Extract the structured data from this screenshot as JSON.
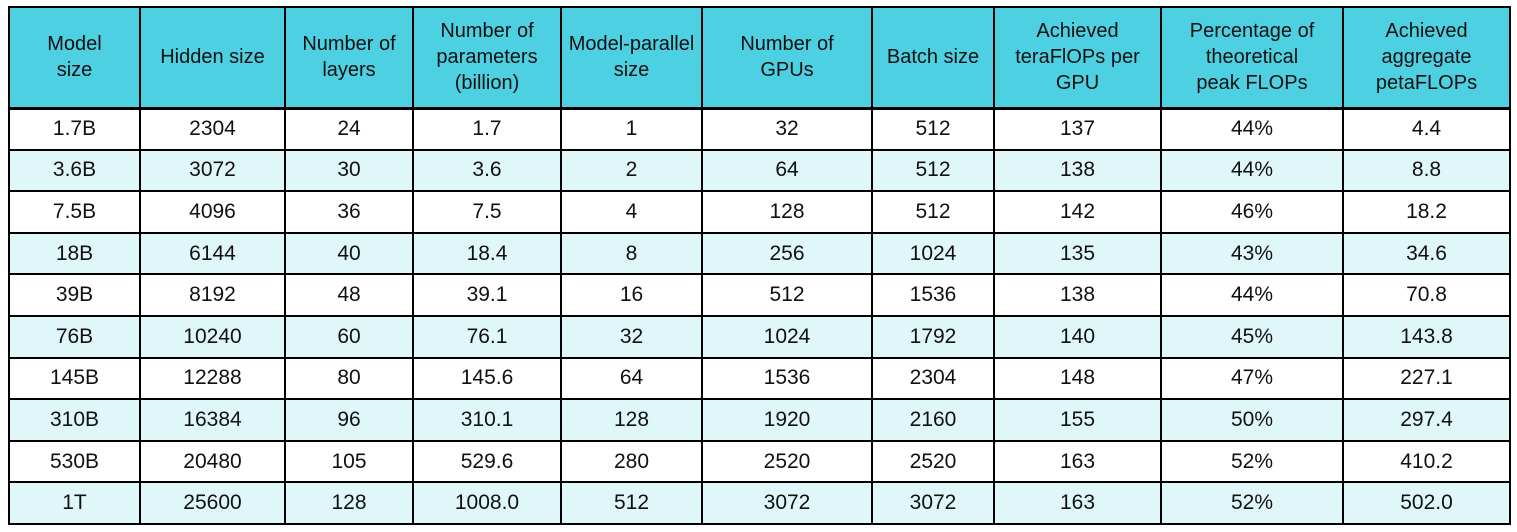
{
  "table": {
    "description": "Model scaling and training throughput table",
    "header": [
      "Model\nsize",
      "Hidden size",
      "Number of\nlayers",
      "Number of\nparameters\n(billion)",
      "Model-parallel\nsize",
      "Number of\nGPUs",
      "Batch size",
      "Achieved\nteraFlOPs per\nGPU",
      "Percentage of\ntheoretical\npeak FLOPs",
      "Achieved\naggregate\npetaFLOPs"
    ],
    "rows": [
      [
        "1.7B",
        "2304",
        "24",
        "1.7",
        "1",
        "32",
        "512",
        "137",
        "44%",
        "4.4"
      ],
      [
        "3.6B",
        "3072",
        "30",
        "3.6",
        "2",
        "64",
        "512",
        "138",
        "44%",
        "8.8"
      ],
      [
        "7.5B",
        "4096",
        "36",
        "7.5",
        "4",
        "128",
        "512",
        "142",
        "46%",
        "18.2"
      ],
      [
        "18B",
        "6144",
        "40",
        "18.4",
        "8",
        "256",
        "1024",
        "135",
        "43%",
        "34.6"
      ],
      [
        "39B",
        "8192",
        "48",
        "39.1",
        "16",
        "512",
        "1536",
        "138",
        "44%",
        "70.8"
      ],
      [
        "76B",
        "10240",
        "60",
        "76.1",
        "32",
        "1024",
        "1792",
        "140",
        "45%",
        "143.8"
      ],
      [
        "145B",
        "12288",
        "80",
        "145.6",
        "64",
        "1536",
        "2304",
        "148",
        "47%",
        "227.1"
      ],
      [
        "310B",
        "16384",
        "96",
        "310.1",
        "128",
        "1920",
        "2160",
        "155",
        "50%",
        "297.4"
      ],
      [
        "530B",
        "20480",
        "105",
        "529.6",
        "280",
        "2520",
        "2520",
        "163",
        "52%",
        "410.2"
      ],
      [
        "1T",
        "25600",
        "128",
        "1008.0",
        "512",
        "3072",
        "3072",
        "163",
        "52%",
        "502.0"
      ]
    ]
  },
  "colors": {
    "header_bg": "#4DD0E1",
    "row_alt_bg": "#E0F7FA",
    "row_bg": "#FFFFFF",
    "border": "#000000",
    "text": "#111111"
  }
}
